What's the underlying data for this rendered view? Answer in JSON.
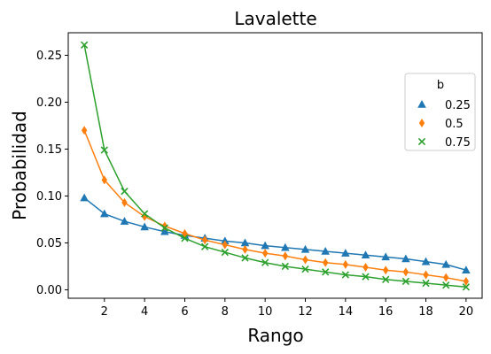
{
  "chart_data": {
    "type": "line",
    "title": "Lavalette",
    "xlabel": "Rango",
    "ylabel": "Probabilidad",
    "x": [
      1,
      2,
      3,
      4,
      5,
      6,
      7,
      8,
      9,
      10,
      11,
      12,
      13,
      14,
      15,
      16,
      17,
      18,
      19,
      20
    ],
    "xlim": [
      0.2,
      20.8
    ],
    "ylim": [
      -0.009,
      0.274
    ],
    "xticks": [
      2,
      4,
      6,
      8,
      10,
      12,
      14,
      16,
      18,
      20
    ],
    "yticks": [
      0.0,
      0.05,
      0.1,
      0.15,
      0.2,
      0.25
    ],
    "ytick_labels": [
      "0.00",
      "0.05",
      "0.10",
      "0.15",
      "0.20",
      "0.25"
    ],
    "grid": false,
    "legend": {
      "title": "b",
      "placement": "right"
    },
    "series": [
      {
        "name": "0.25",
        "marker": "triangle",
        "color": "#1f77b4",
        "values": [
          0.098,
          0.081,
          0.073,
          0.067,
          0.062,
          0.058,
          0.055,
          0.052,
          0.05,
          0.047,
          0.045,
          0.043,
          0.041,
          0.039,
          0.037,
          0.035,
          0.033,
          0.03,
          0.027,
          0.021
        ]
      },
      {
        "name": "0.5",
        "marker": "diamond",
        "color": "#ff7f0e",
        "values": [
          0.17,
          0.117,
          0.093,
          0.078,
          0.068,
          0.06,
          0.053,
          0.048,
          0.043,
          0.039,
          0.036,
          0.032,
          0.029,
          0.027,
          0.024,
          0.021,
          0.019,
          0.016,
          0.013,
          0.009
        ]
      },
      {
        "name": "0.75",
        "marker": "x",
        "color": "#2ca02c",
        "values": [
          0.261,
          0.149,
          0.105,
          0.081,
          0.066,
          0.055,
          0.046,
          0.04,
          0.034,
          0.029,
          0.025,
          0.022,
          0.019,
          0.016,
          0.014,
          0.011,
          0.009,
          0.007,
          0.005,
          0.003
        ]
      }
    ]
  }
}
